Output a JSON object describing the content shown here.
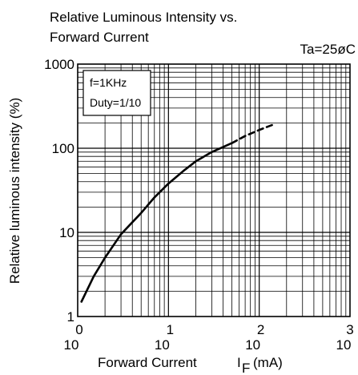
{
  "chart_data": {
    "type": "line",
    "title_line1": "Relative Luminous Intensity vs.",
    "title_line2": "Forward Current",
    "condition": "Ta=25øC",
    "ylabel": "Relative luminous intensity (%)",
    "xlabel_main": "Forward Current",
    "xlabel_symbol": "I",
    "xlabel_subscript": "F",
    "xlabel_unit": "(mA)",
    "x_scale": "log",
    "y_scale": "log",
    "xlim": [
      1,
      1000
    ],
    "ylim": [
      1,
      1000
    ],
    "grid": true,
    "x_tick_labels": [
      {
        "base": "10",
        "exp": "0"
      },
      {
        "base": "10",
        "exp": "1"
      },
      {
        "base": "10",
        "exp": "2"
      },
      {
        "base": "10",
        "exp": "3"
      }
    ],
    "y_tick_labels": [
      "1",
      "10",
      "100",
      "1000"
    ],
    "legend_lines": [
      "f=1KHz",
      "Duty=1/10"
    ],
    "legend_position": "top-left",
    "series": [
      {
        "style": "solid",
        "x": [
          1.1,
          1.5,
          2,
          3,
          5,
          7,
          10,
          15,
          20,
          30,
          50
        ],
        "y": [
          1.5,
          3,
          5,
          9.5,
          17,
          26,
          38,
          55,
          70,
          90,
          115
        ]
      },
      {
        "style": "dashed",
        "x": [
          50,
          70,
          100,
          150
        ],
        "y": [
          115,
          140,
          165,
          195
        ]
      }
    ]
  }
}
